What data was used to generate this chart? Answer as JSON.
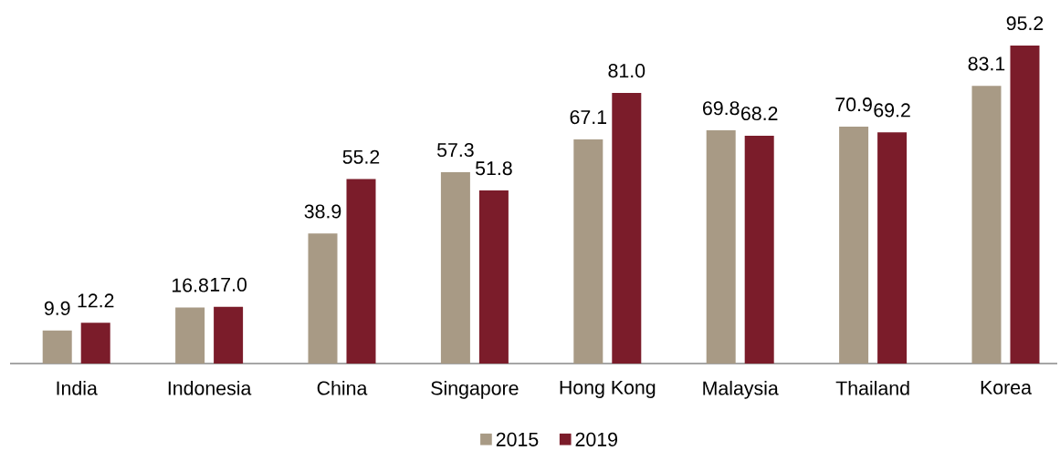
{
  "chart_data": {
    "type": "bar",
    "categories": [
      "India",
      "Indonesia",
      "China",
      "Singapore",
      "Hong Kong",
      "Malaysia",
      "Thailand",
      "Korea"
    ],
    "series": [
      {
        "name": "2015",
        "color": "#a89a85",
        "values": [
          9.9,
          16.8,
          38.9,
          57.3,
          67.1,
          69.8,
          70.9,
          83.1
        ],
        "value_labels": [
          "9.9",
          "16.8",
          "38.9",
          "57.3",
          "67.1",
          "69.8",
          "70.9",
          "83.1"
        ]
      },
      {
        "name": "2019",
        "color": "#7b1c2a",
        "values": [
          12.2,
          17.0,
          55.2,
          51.8,
          81.0,
          68.2,
          69.2,
          95.2
        ],
        "value_labels": [
          "12.2",
          "17.0",
          "55.2",
          "51.8",
          "81.0",
          "68.2",
          "69.2",
          "95.2"
        ]
      }
    ],
    "legend": "bottom"
  }
}
